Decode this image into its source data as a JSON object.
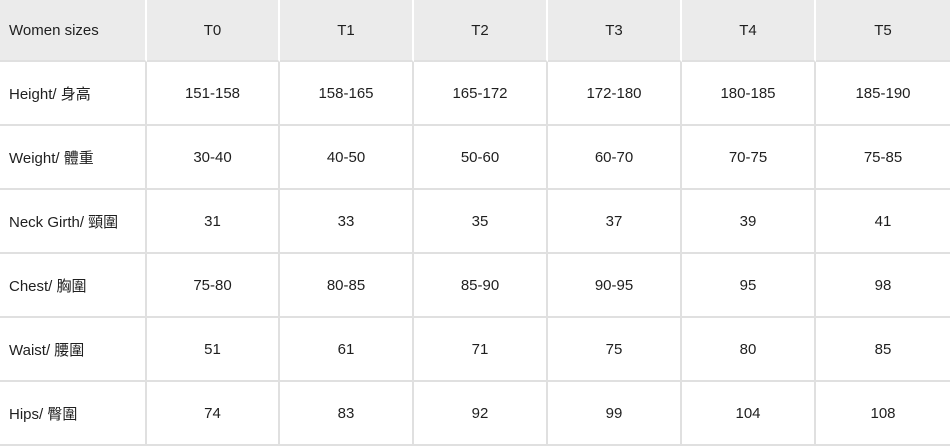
{
  "table": {
    "corner_label": "Women sizes",
    "columns": [
      "T0",
      "T1",
      "T2",
      "T3",
      "T4",
      "T5"
    ],
    "rows": [
      {
        "label": "Height/ 身高",
        "values": [
          "151-158",
          "158-165",
          "165-172",
          "172-180",
          "180-185",
          "185-190"
        ]
      },
      {
        "label": "Weight/ 體重",
        "values": [
          "30-40",
          "40-50",
          "50-60",
          "60-70",
          "70-75",
          "75-85"
        ]
      },
      {
        "label": "Neck Girth/ 頸圍",
        "values": [
          "31",
          "33",
          "35",
          "37",
          "39",
          "41"
        ]
      },
      {
        "label": "Chest/ 胸圍",
        "values": [
          "75-80",
          "80-85",
          "85-90",
          "90-95",
          "95",
          "98"
        ]
      },
      {
        "label": "Waist/ 腰圍",
        "values": [
          "51",
          "61",
          "71",
          "75",
          "80",
          "85"
        ]
      },
      {
        "label": "Hips/ 臀圍",
        "values": [
          "74",
          "83",
          "92",
          "99",
          "104",
          "108"
        ]
      }
    ],
    "colors": {
      "header_bg": "#ebebeb",
      "body_bg": "#ffffff",
      "border": "#e0e0e0",
      "header_divider": "#ffffff",
      "text": "#1f1f1f"
    }
  },
  "chart_data": {
    "type": "table",
    "title": "Women sizes",
    "categories": [
      "T0",
      "T1",
      "T2",
      "T3",
      "T4",
      "T5"
    ],
    "series": [
      {
        "name": "Height/ 身高",
        "values": [
          "151-158",
          "158-165",
          "165-172",
          "172-180",
          "180-185",
          "185-190"
        ]
      },
      {
        "name": "Weight/ 體重",
        "values": [
          "30-40",
          "40-50",
          "50-60",
          "60-70",
          "70-75",
          "75-85"
        ]
      },
      {
        "name": "Neck Girth/ 頸圍",
        "values": [
          31,
          33,
          35,
          37,
          39,
          41
        ]
      },
      {
        "name": "Chest/ 胸圍",
        "values": [
          "75-80",
          "80-85",
          "85-90",
          "90-95",
          95,
          98
        ]
      },
      {
        "name": "Waist/ 腰圍",
        "values": [
          51,
          61,
          71,
          75,
          80,
          85
        ]
      },
      {
        "name": "Hips/ 臀圍",
        "values": [
          74,
          83,
          92,
          99,
          104,
          108
        ]
      }
    ]
  }
}
